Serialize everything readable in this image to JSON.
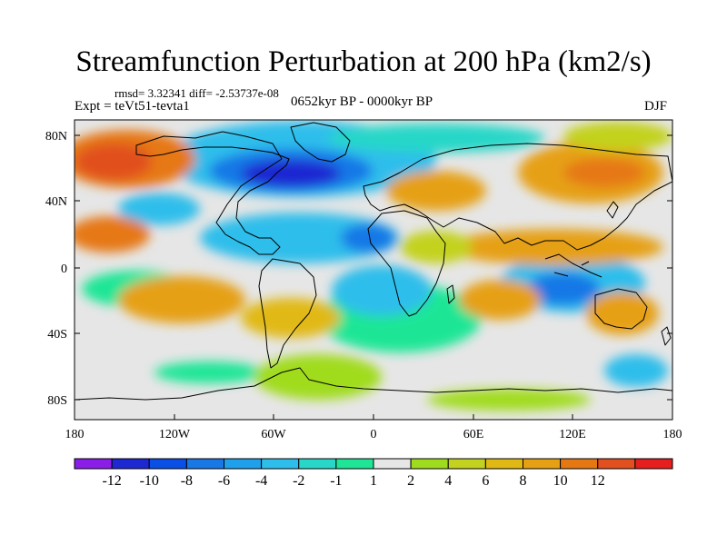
{
  "title": "Streamfunction Perturbation at 200 hPa (km2/s)",
  "stats_text": "rmsd= 3.32341 diff= -2.53737e-08",
  "experiment_label": "Expt = teVt51-tevta1",
  "period_label": "0652kyr BP - 0000kyr BP",
  "season_label": "DJF",
  "lat_ticks": [
    "80N",
    "40N",
    "0",
    "40S",
    "80S"
  ],
  "lon_ticks": [
    "180",
    "120W",
    "60W",
    "0",
    "60E",
    "120E",
    "180"
  ],
  "colorbar": {
    "labels": [
      "-12",
      "-10",
      "-8",
      "-6",
      "-4",
      "-2",
      "-1",
      "1",
      "2",
      "4",
      "6",
      "8",
      "10",
      "12"
    ],
    "colors": [
      "#8a1ee8",
      "#1e28d2",
      "#0a50e6",
      "#1978e6",
      "#1ea0eb",
      "#2dbeeb",
      "#28d7c8",
      "#1ee696",
      "#e6e6e6",
      "#a0dc1e",
      "#c3d21e",
      "#e1b914",
      "#e6a014",
      "#e67814",
      "#e1501e",
      "#e61e1e"
    ]
  },
  "colors": {
    "land_outline": "#000000",
    "map_background": "#e6e6e6"
  }
}
